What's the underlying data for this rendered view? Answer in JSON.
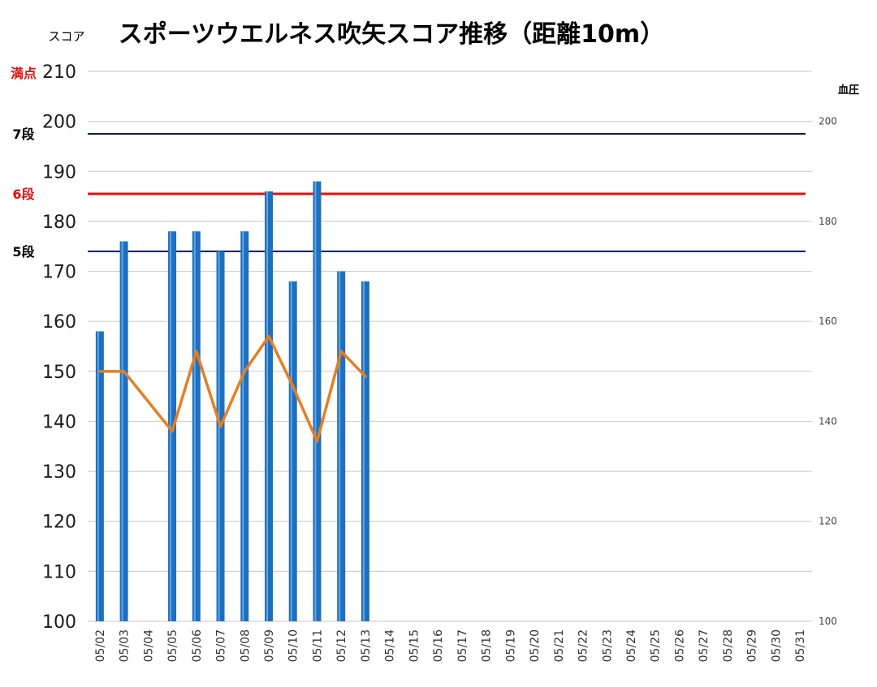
{
  "chart_data": {
    "type": "bar",
    "title": "スポーツウエルネス吹矢スコア推移（距離10m）",
    "ylabel": "スコア",
    "y2label": "血圧",
    "ylim": [
      100,
      210
    ],
    "y2lim": [
      100,
      210
    ],
    "yticks": [
      100,
      110,
      120,
      130,
      140,
      150,
      160,
      170,
      180,
      190,
      200,
      210
    ],
    "y2ticks": [
      100,
      120,
      140,
      160,
      180,
      200
    ],
    "grid": true,
    "categories": [
      "05/02",
      "05/03",
      "05/04",
      "05/05",
      "05/06",
      "05/07",
      "05/08",
      "05/09",
      "05/10",
      "05/11",
      "05/12",
      "05/13",
      "05/14",
      "05/15",
      "05/16",
      "05/17",
      "05/18",
      "05/19",
      "05/20",
      "05/21",
      "05/22",
      "05/23",
      "05/24",
      "05/25",
      "05/26",
      "05/27",
      "05/28",
      "05/29",
      "05/30",
      "05/31"
    ],
    "series": [
      {
        "type": "bar",
        "axis": "left",
        "color": "#1f6fbf",
        "values": [
          158,
          176,
          null,
          178,
          178,
          174,
          178,
          186,
          168,
          188,
          170,
          168,
          null,
          null,
          null,
          null,
          null,
          null,
          null,
          null,
          null,
          null,
          null,
          null,
          null,
          null,
          null,
          null,
          null,
          null
        ]
      },
      {
        "type": "line",
        "axis": "right",
        "color": "#e67e22",
        "values": [
          150,
          150,
          null,
          138,
          154,
          139,
          150,
          157,
          147,
          136,
          154,
          149,
          null,
          null,
          null,
          null,
          null,
          null,
          null,
          null,
          null,
          null,
          null,
          null,
          null,
          null,
          null,
          null,
          null,
          null
        ]
      }
    ],
    "reference_lines": [
      {
        "label": "満点",
        "value": 210,
        "color": "#e01010",
        "line": false
      },
      {
        "label": "7段",
        "value": 197.5,
        "color": "#0a1a5c",
        "label_color": "#000000",
        "line": true
      },
      {
        "label": "6段",
        "value": 185.5,
        "color": "#e01010",
        "label_color": "#e01010",
        "line": true
      },
      {
        "label": "5段",
        "value": 174,
        "color": "#0a1a5c",
        "label_color": "#000000",
        "line": true
      }
    ]
  }
}
